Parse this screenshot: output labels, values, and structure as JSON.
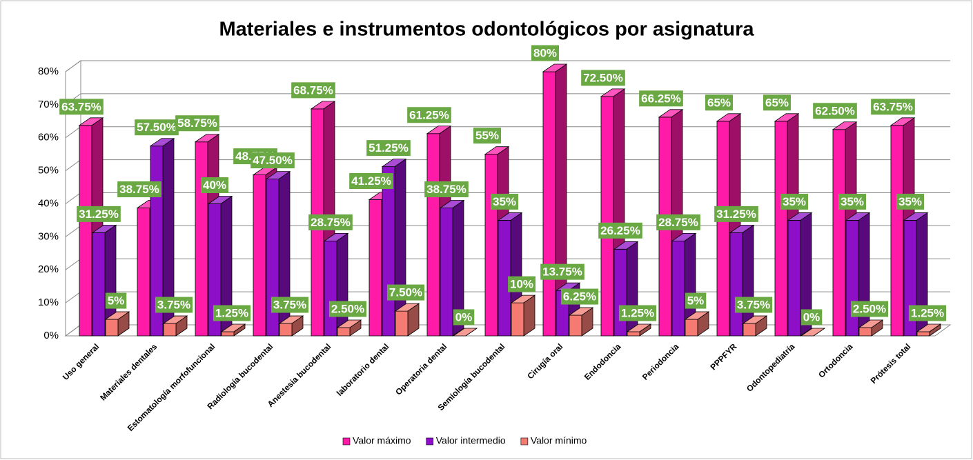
{
  "chart_data": {
    "type": "bar3d",
    "title": "Materiales e instrumentos odontológicos por asignatura",
    "categories": [
      "Uso general",
      "Materiales dentales",
      "Estomatología morfofuncional",
      "Radiología bucodental",
      "Anestesia bucodental",
      "laboratorio dental",
      "Operatoria dental",
      "Semiología bucodental",
      "Cirugía oral",
      "Endodoncia",
      "Periodoncia",
      "PPPFYR",
      "Odontopediatría",
      "Ortodoncia",
      "Prótesis total"
    ],
    "series": [
      {
        "name": "Valor máximo",
        "color": "#ff1aa8",
        "values": [
          63.75,
          38.75,
          58.75,
          48.75,
          68.75,
          41.25,
          61.25,
          55,
          80,
          72.5,
          66.25,
          65,
          65,
          62.5,
          63.75
        ],
        "value_labels": [
          "63.75%",
          "38.75%",
          "58.75%",
          "48.75%",
          "68.75%",
          "41.25%",
          "61.25%",
          "55%",
          "80%",
          "72.50%",
          "66.25%",
          "65%",
          "65%",
          "62.50%",
          "63.75%"
        ]
      },
      {
        "name": "Valor intermedio",
        "color": "#8e0fc8",
        "values": [
          31.25,
          57.5,
          40,
          47.5,
          28.75,
          51.25,
          38.75,
          35,
          13.75,
          26.25,
          28.75,
          31.25,
          35,
          35,
          35
        ],
        "value_labels": [
          "31.25%",
          "57.50%",
          "40%",
          "47.50%",
          "28.75%",
          "51.25%",
          "38.75%",
          "35%",
          "13.75%",
          "26.25%",
          "28.75%",
          "31.25%",
          "35%",
          "35%",
          "35%"
        ]
      },
      {
        "name": "Valor mínimo",
        "color": "#f47a72",
        "values": [
          5,
          3.75,
          1.25,
          3.75,
          2.5,
          7.5,
          0,
          10,
          6.25,
          1.25,
          5,
          3.75,
          0,
          2.5,
          1.25
        ],
        "value_labels": [
          "5%",
          "3.75%",
          "1.25%",
          "3.75%",
          "2.50%",
          "7.50%",
          "0%",
          "10%",
          "6.25%",
          "1.25%",
          "5%",
          "3.75%",
          "0%",
          "2.50%",
          "1.25%"
        ]
      }
    ],
    "ylim": [
      0,
      80
    ],
    "yticks": [
      {
        "value": 0,
        "label": "0%"
      },
      {
        "value": 10,
        "label": "10%"
      },
      {
        "value": 20,
        "label": "20%"
      },
      {
        "value": 30,
        "label": "30%"
      },
      {
        "value": 40,
        "label": "40%"
      },
      {
        "value": 50,
        "label": "50%"
      },
      {
        "value": 60,
        "label": "60%"
      },
      {
        "value": 70,
        "label": "70%"
      },
      {
        "value": 80,
        "label": "80%"
      }
    ],
    "grid": true,
    "legend": "bottom",
    "label_color": "#6aa843"
  }
}
